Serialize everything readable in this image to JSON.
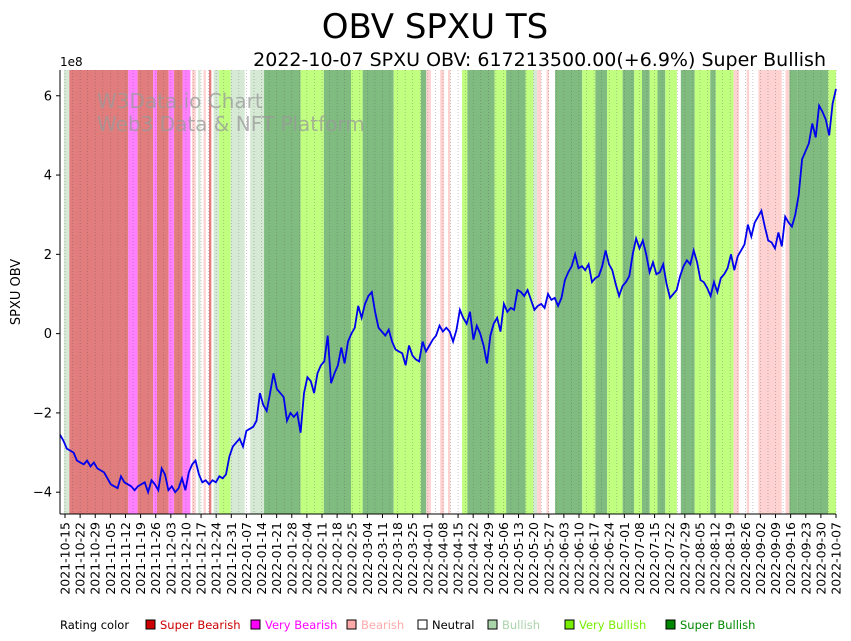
{
  "chart_data": {
    "type": "line",
    "title": "OBV SPXU TS",
    "subtitle": "2022-10-07 SPXU OBV: 617213500.00(+6.9%) Super Bullish",
    "ylabel": "SPXU OBV",
    "y_exponent_label": "1e8",
    "ylim": [
      -4.55,
      6.65
    ],
    "y_ticks": [
      -4,
      -2,
      0,
      2,
      4,
      6
    ],
    "y_tick_labels": [
      "−4",
      "−2",
      "0",
      "2",
      "4",
      "6"
    ],
    "watermark": [
      "W3Data.io Chart",
      "Web3 Data & NFT Platform"
    ],
    "x_tick_labels": [
      "2021-10-15",
      "2021-10-22",
      "2021-10-29",
      "2021-11-05",
      "2021-11-12",
      "2021-11-19",
      "2021-11-26",
      "2021-12-03",
      "2021-12-10",
      "2021-12-17",
      "2021-12-24",
      "2021-12-31",
      "2022-01-07",
      "2022-01-14",
      "2022-01-21",
      "2022-01-28",
      "2022-02-04",
      "2022-02-11",
      "2022-02-18",
      "2022-02-25",
      "2022-03-04",
      "2022-03-11",
      "2022-03-18",
      "2022-03-25",
      "2022-04-01",
      "2022-04-08",
      "2022-04-15",
      "2022-04-22",
      "2022-04-29",
      "2022-05-06",
      "2022-05-13",
      "2022-05-20",
      "2022-05-27",
      "2022-06-03",
      "2022-06-10",
      "2022-06-17",
      "2022-06-24",
      "2022-07-01",
      "2022-07-08",
      "2022-07-15",
      "2022-07-22",
      "2022-07-29",
      "2022-08-05",
      "2022-08-12",
      "2022-08-19",
      "2022-08-26",
      "2022-09-02",
      "2022-09-09",
      "2022-09-16",
      "2022-09-23",
      "2022-09-30",
      "2022-10-07"
    ],
    "series": [
      {
        "values": [
          -2.55,
          -2.7,
          -2.9,
          -2.95,
          -3.0,
          -3.2,
          -3.25,
          -3.3,
          -3.2,
          -3.35,
          -3.25,
          -3.4,
          -3.45,
          -3.5,
          -3.65,
          -3.8,
          -3.85,
          -3.9,
          -3.6,
          -3.75,
          -3.8,
          -3.85,
          -3.95,
          -3.85,
          -3.8,
          -3.75,
          -4.0,
          -3.7,
          -3.8,
          -3.95,
          -3.4,
          -3.55,
          -3.95,
          -3.85,
          -4.0,
          -3.9,
          -3.65,
          -3.95,
          -3.5,
          -3.3,
          -3.2,
          -3.55,
          -3.75,
          -3.7,
          -3.8,
          -3.7,
          -3.75,
          -3.6,
          -3.65,
          -3.55,
          -3.1,
          -2.85,
          -2.75,
          -2.65,
          -2.85,
          -2.45,
          -2.4,
          -2.35,
          -2.2,
          -1.5,
          -1.8,
          -1.95,
          -1.5,
          -1.0,
          -1.4,
          -1.5,
          -1.6,
          -2.2,
          -2.0,
          -2.1,
          -2.0,
          -2.5,
          -1.5,
          -1.1,
          -1.2,
          -1.5,
          -1.0,
          -0.8,
          -0.7,
          -0.05,
          -1.25,
          -1.0,
          -0.8,
          -0.35,
          -0.75,
          -0.2,
          0.0,
          0.15,
          0.7,
          0.4,
          0.75,
          0.95,
          1.05,
          0.55,
          0.15,
          0.05,
          -0.05,
          0.1,
          -0.2,
          -0.4,
          -0.45,
          -0.5,
          -0.8,
          -0.3,
          -0.55,
          -0.65,
          -0.7,
          -0.2,
          -0.45,
          -0.3,
          -0.15,
          -0.05,
          0.2,
          0.05,
          0.15,
          0.05,
          -0.2,
          0.1,
          0.6,
          0.4,
          0.25,
          0.55,
          -0.15,
          0.2,
          0.0,
          -0.3,
          -0.75,
          -0.05,
          0.25,
          0.4,
          0.05,
          0.75,
          0.55,
          0.65,
          0.6,
          1.1,
          1.05,
          0.95,
          1.1,
          0.85,
          0.6,
          0.7,
          0.75,
          0.65,
          1.0,
          0.85,
          0.9,
          0.7,
          0.9,
          1.35,
          1.55,
          1.7,
          2.0,
          1.65,
          1.7,
          1.6,
          1.75,
          1.3,
          1.4,
          1.45,
          1.7,
          2.1,
          1.75,
          1.6,
          1.25,
          0.95,
          1.2,
          1.3,
          1.45,
          2.0,
          2.4,
          2.15,
          2.35,
          2.0,
          1.55,
          1.8,
          1.5,
          1.55,
          1.75,
          1.25,
          0.9,
          1.0,
          1.1,
          1.45,
          1.7,
          1.85,
          1.75,
          2.1,
          1.8,
          1.35,
          1.3,
          1.15,
          0.95,
          1.3,
          1.05,
          1.4,
          1.5,
          1.65,
          2.0,
          1.6,
          1.95,
          2.1,
          2.25,
          2.75,
          2.45,
          2.8,
          2.95,
          3.1,
          2.7,
          2.35,
          2.3,
          2.15,
          2.55,
          2.2,
          2.95,
          2.8,
          2.7,
          3.0,
          3.5,
          4.4,
          4.6,
          4.8,
          5.3,
          4.95,
          5.75,
          5.6,
          5.4,
          5.0,
          5.8,
          6.17
        ]
      }
    ],
    "bands": [
      {
        "from": 0.005,
        "to": 0.012,
        "rating": "Bullish"
      },
      {
        "from": 0.012,
        "to": 0.088,
        "rating": "Super Bearish"
      },
      {
        "from": 0.088,
        "to": 0.1,
        "rating": "Very Bearish"
      },
      {
        "from": 0.1,
        "to": 0.12,
        "rating": "Super Bearish"
      },
      {
        "from": 0.12,
        "to": 0.125,
        "rating": "Very Bearish"
      },
      {
        "from": 0.125,
        "to": 0.14,
        "rating": "Super Bearish"
      },
      {
        "from": 0.14,
        "to": 0.147,
        "rating": "Very Bearish"
      },
      {
        "from": 0.147,
        "to": 0.158,
        "rating": "Super Bearish"
      },
      {
        "from": 0.158,
        "to": 0.168,
        "rating": "Very Bearish"
      },
      {
        "from": 0.17,
        "to": 0.175,
        "rating": "Bearish"
      },
      {
        "from": 0.178,
        "to": 0.181,
        "rating": "Bullish"
      },
      {
        "from": 0.185,
        "to": 0.188,
        "rating": "Bearish"
      },
      {
        "from": 0.192,
        "to": 0.195,
        "rating": "Super Bearish"
      },
      {
        "from": 0.198,
        "to": 0.205,
        "rating": "Bullish"
      },
      {
        "from": 0.205,
        "to": 0.22,
        "rating": "Very Bullish"
      },
      {
        "from": 0.22,
        "to": 0.238,
        "rating": "Bullish"
      },
      {
        "from": 0.245,
        "to": 0.268,
        "rating": "Bullish"
      },
      {
        "from": 0.263,
        "to": 0.31,
        "rating": "Super Bullish"
      },
      {
        "from": 0.31,
        "to": 0.34,
        "rating": "Very Bullish"
      },
      {
        "from": 0.34,
        "to": 0.375,
        "rating": "Super Bullish"
      },
      {
        "from": 0.375,
        "to": 0.39,
        "rating": "Very Bullish"
      },
      {
        "from": 0.39,
        "to": 0.43,
        "rating": "Super Bullish"
      },
      {
        "from": 0.43,
        "to": 0.465,
        "rating": "Very Bullish"
      },
      {
        "from": 0.465,
        "to": 0.472,
        "rating": "Super Bullish"
      },
      {
        "from": 0.472,
        "to": 0.478,
        "rating": "Bearish"
      },
      {
        "from": 0.49,
        "to": 0.495,
        "rating": "Bearish"
      },
      {
        "from": 0.5,
        "to": 0.503,
        "rating": "Bearish"
      },
      {
        "from": 0.518,
        "to": 0.525,
        "rating": "Very Bullish"
      },
      {
        "from": 0.525,
        "to": 0.56,
        "rating": "Super Bullish"
      },
      {
        "from": 0.56,
        "to": 0.575,
        "rating": "Very Bullish"
      },
      {
        "from": 0.575,
        "to": 0.6,
        "rating": "Super Bullish"
      },
      {
        "from": 0.6,
        "to": 0.61,
        "rating": "Very Bullish"
      },
      {
        "from": 0.61,
        "to": 0.615,
        "rating": "Bullish"
      },
      {
        "from": 0.615,
        "to": 0.62,
        "rating": "Bearish"
      },
      {
        "from": 0.627,
        "to": 0.63,
        "rating": "Bearish"
      },
      {
        "from": 0.638,
        "to": 0.673,
        "rating": "Super Bullish"
      },
      {
        "from": 0.673,
        "to": 0.69,
        "rating": "Very Bullish"
      },
      {
        "from": 0.69,
        "to": 0.705,
        "rating": "Super Bullish"
      },
      {
        "from": 0.705,
        "to": 0.725,
        "rating": "Very Bullish"
      },
      {
        "from": 0.725,
        "to": 0.74,
        "rating": "Super Bullish"
      },
      {
        "from": 0.74,
        "to": 0.75,
        "rating": "Very Bullish"
      },
      {
        "from": 0.75,
        "to": 0.76,
        "rating": "Super Bullish"
      },
      {
        "from": 0.76,
        "to": 0.77,
        "rating": "Very Bullish"
      },
      {
        "from": 0.77,
        "to": 0.78,
        "rating": "Super Bullish"
      },
      {
        "from": 0.78,
        "to": 0.795,
        "rating": "Very Bullish"
      },
      {
        "from": 0.8,
        "to": 0.818,
        "rating": "Super Bullish"
      },
      {
        "from": 0.818,
        "to": 0.838,
        "rating": "Very Bullish"
      },
      {
        "from": 0.838,
        "to": 0.845,
        "rating": "Super Bullish"
      },
      {
        "from": 0.845,
        "to": 0.868,
        "rating": "Very Bullish"
      },
      {
        "from": 0.868,
        "to": 0.875,
        "rating": "Bearish"
      },
      {
        "from": 0.885,
        "to": 0.888,
        "rating": "Bearish"
      },
      {
        "from": 0.9,
        "to": 0.93,
        "rating": "Bearish"
      },
      {
        "from": 0.935,
        "to": 0.94,
        "rating": "Bearish"
      },
      {
        "from": 0.94,
        "to": 0.95,
        "rating": "Super Bullish"
      },
      {
        "from": 0.95,
        "to": 0.99,
        "rating": "Super Bullish"
      },
      {
        "from": 0.99,
        "to": 1.0,
        "rating": "Very Bullish"
      }
    ],
    "legend": {
      "label": "Rating color",
      "placement": "bottom",
      "items": [
        {
          "name": "Super Bearish",
          "color": "#cc0000",
          "text_color": "#cc0000"
        },
        {
          "name": "Very Bearish",
          "color": "#ff00ff",
          "text_color": "#ff00ff"
        },
        {
          "name": "Bearish",
          "color": "#ffaaaa",
          "text_color": "#ffaaaa"
        },
        {
          "name": "Neutral",
          "color": "#ffffff",
          "text_color": "#000000"
        },
        {
          "name": "Bullish",
          "color": "#aad4aa",
          "text_color": "#aad4aa"
        },
        {
          "name": "Very Bullish",
          "color": "#77ee00",
          "text_color": "#77ee00"
        },
        {
          "name": "Super Bullish",
          "color": "#008800",
          "text_color": "#008800"
        }
      ]
    },
    "band_colors": {
      "Super Bearish": "#e27d7d",
      "Very Bearish": "#ff80ff",
      "Bearish": "#ffd2d2",
      "Neutral": "#ffffff",
      "Bullish": "#d5e9d5",
      "Very Bullish": "#c1ff80",
      "Super Bullish": "#80bb80"
    },
    "line_color": "#0000ee",
    "grid": "vertical-dotted"
  }
}
